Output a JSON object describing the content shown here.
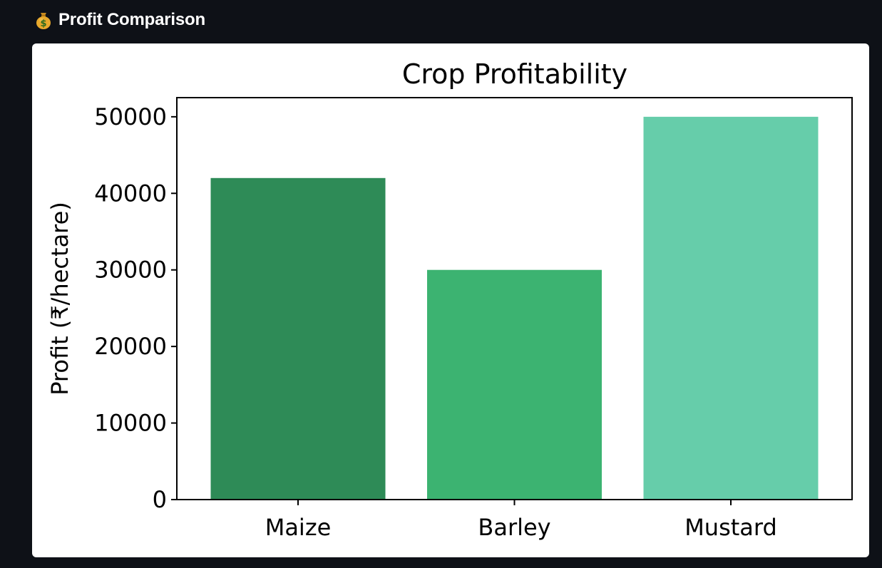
{
  "header": {
    "icon": "money-bag-icon",
    "title": "Profit Comparison"
  },
  "chart_data": {
    "type": "bar",
    "title": "Crop Profitability",
    "xlabel": "",
    "ylabel": "Profit (₹/hectare)",
    "categories": [
      "Maize",
      "Barley",
      "Mustard"
    ],
    "values": [
      42000,
      30000,
      50000
    ],
    "colors": [
      "#2e8b57",
      "#3cb371",
      "#66cdaa"
    ],
    "ylim": [
      0,
      52500
    ],
    "yticks": [
      0,
      10000,
      20000,
      30000,
      40000,
      50000
    ],
    "grid": false,
    "legend": "none"
  }
}
